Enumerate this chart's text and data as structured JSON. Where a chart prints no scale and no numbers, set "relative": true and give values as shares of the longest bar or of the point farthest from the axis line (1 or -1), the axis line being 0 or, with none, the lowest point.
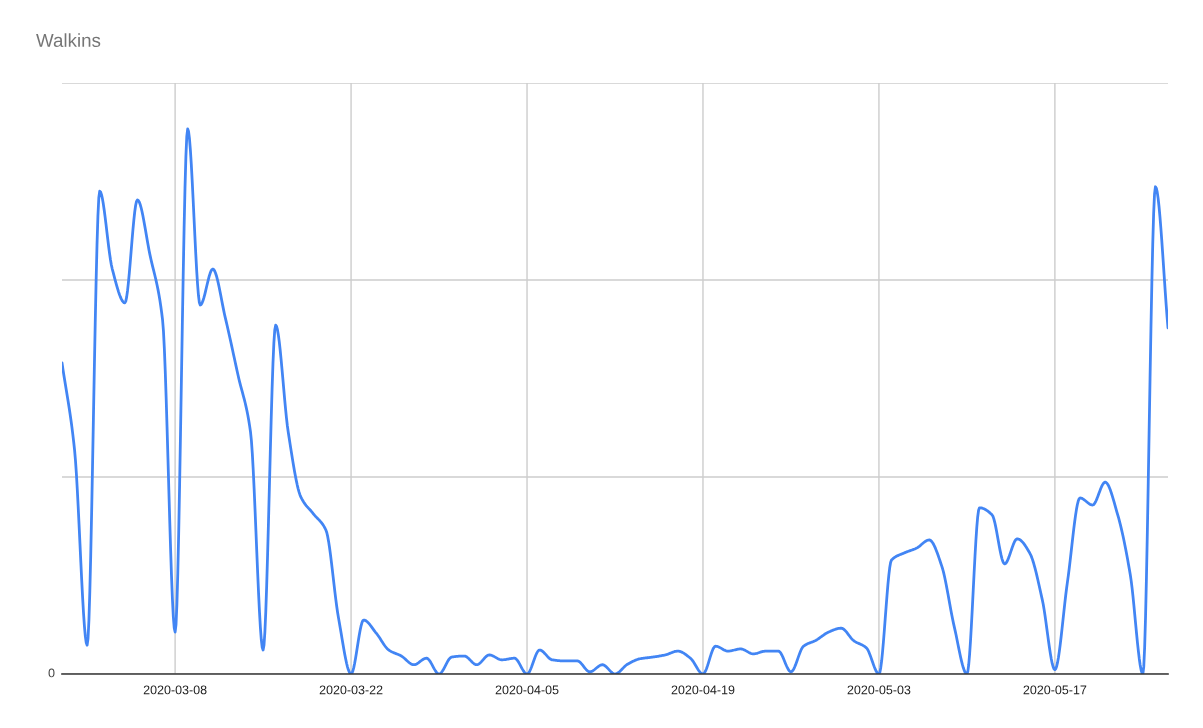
{
  "chart_data": {
    "type": "line",
    "title": "Walkins",
    "relative": true,
    "x": [
      "2020-02-28",
      "2020-02-29",
      "2020-03-01",
      "2020-03-02",
      "2020-03-03",
      "2020-03-04",
      "2020-03-05",
      "2020-03-06",
      "2020-03-07",
      "2020-03-08",
      "2020-03-09",
      "2020-03-10",
      "2020-03-11",
      "2020-03-12",
      "2020-03-13",
      "2020-03-14",
      "2020-03-15",
      "2020-03-16",
      "2020-03-17",
      "2020-03-18",
      "2020-03-19",
      "2020-03-20",
      "2020-03-21",
      "2020-03-22",
      "2020-03-23",
      "2020-03-24",
      "2020-03-25",
      "2020-03-26",
      "2020-03-27",
      "2020-03-28",
      "2020-03-29",
      "2020-03-30",
      "2020-03-31",
      "2020-04-01",
      "2020-04-02",
      "2020-04-03",
      "2020-04-04",
      "2020-04-05",
      "2020-04-06",
      "2020-04-07",
      "2020-04-08",
      "2020-04-09",
      "2020-04-10",
      "2020-04-11",
      "2020-04-12",
      "2020-04-13",
      "2020-04-14",
      "2020-04-15",
      "2020-04-16",
      "2020-04-17",
      "2020-04-18",
      "2020-04-19",
      "2020-04-20",
      "2020-04-21",
      "2020-04-22",
      "2020-04-23",
      "2020-04-24",
      "2020-04-25",
      "2020-04-26",
      "2020-04-27",
      "2020-04-28",
      "2020-04-29",
      "2020-04-30",
      "2020-05-01",
      "2020-05-02",
      "2020-05-03",
      "2020-05-04",
      "2020-05-05",
      "2020-05-06",
      "2020-05-07",
      "2020-05-08",
      "2020-05-09",
      "2020-05-10",
      "2020-05-11",
      "2020-05-12",
      "2020-05-13",
      "2020-05-14",
      "2020-05-15",
      "2020-05-16",
      "2020-05-17",
      "2020-05-18",
      "2020-05-19",
      "2020-05-20",
      "2020-05-21",
      "2020-05-22",
      "2020-05-23",
      "2020-05-24",
      "2020-05-25",
      "2020-05-26"
    ],
    "series": [
      {
        "color": "#4285f4",
        "values": [
          0.571,
          0.411,
          0.053,
          0.886,
          0.743,
          0.681,
          0.87,
          0.769,
          0.65,
          0.077,
          1,
          0.677,
          0.743,
          0.653,
          0.549,
          0.444,
          0.044,
          0.64,
          0.444,
          0.325,
          0.294,
          0.264,
          0.103,
          0,
          0.099,
          0.075,
          0.044,
          0.033,
          0.017,
          0.029,
          0,
          0.031,
          0.033,
          0.017,
          0.035,
          0.026,
          0.029,
          0,
          0.044,
          0.026,
          0.024,
          0.024,
          0.004,
          0.017,
          0,
          0.018,
          0.028,
          0.031,
          0.035,
          0.042,
          0.029,
          0,
          0.051,
          0.042,
          0.046,
          0.037,
          0.042,
          0.042,
          0.004,
          0.051,
          0.062,
          0.077,
          0.084,
          0.061,
          0.048,
          0,
          0.209,
          0.222,
          0.231,
          0.246,
          0.198,
          0.086,
          0,
          0.305,
          0.292,
          0.202,
          0.248,
          0.222,
          0.136,
          0.008,
          0.169,
          0.323,
          0.31,
          0.352,
          0.292,
          0.182,
          0,
          0.894,
          0.635
        ]
      }
    ],
    "xlim": [
      "2020-02-28",
      "2020-05-26"
    ],
    "xticks": [
      "2020-03-08",
      "2020-03-22",
      "2020-04-05",
      "2020-04-19",
      "2020-05-03",
      "2020-05-17"
    ],
    "annotations": [
      "0"
    ],
    "grid": true
  }
}
